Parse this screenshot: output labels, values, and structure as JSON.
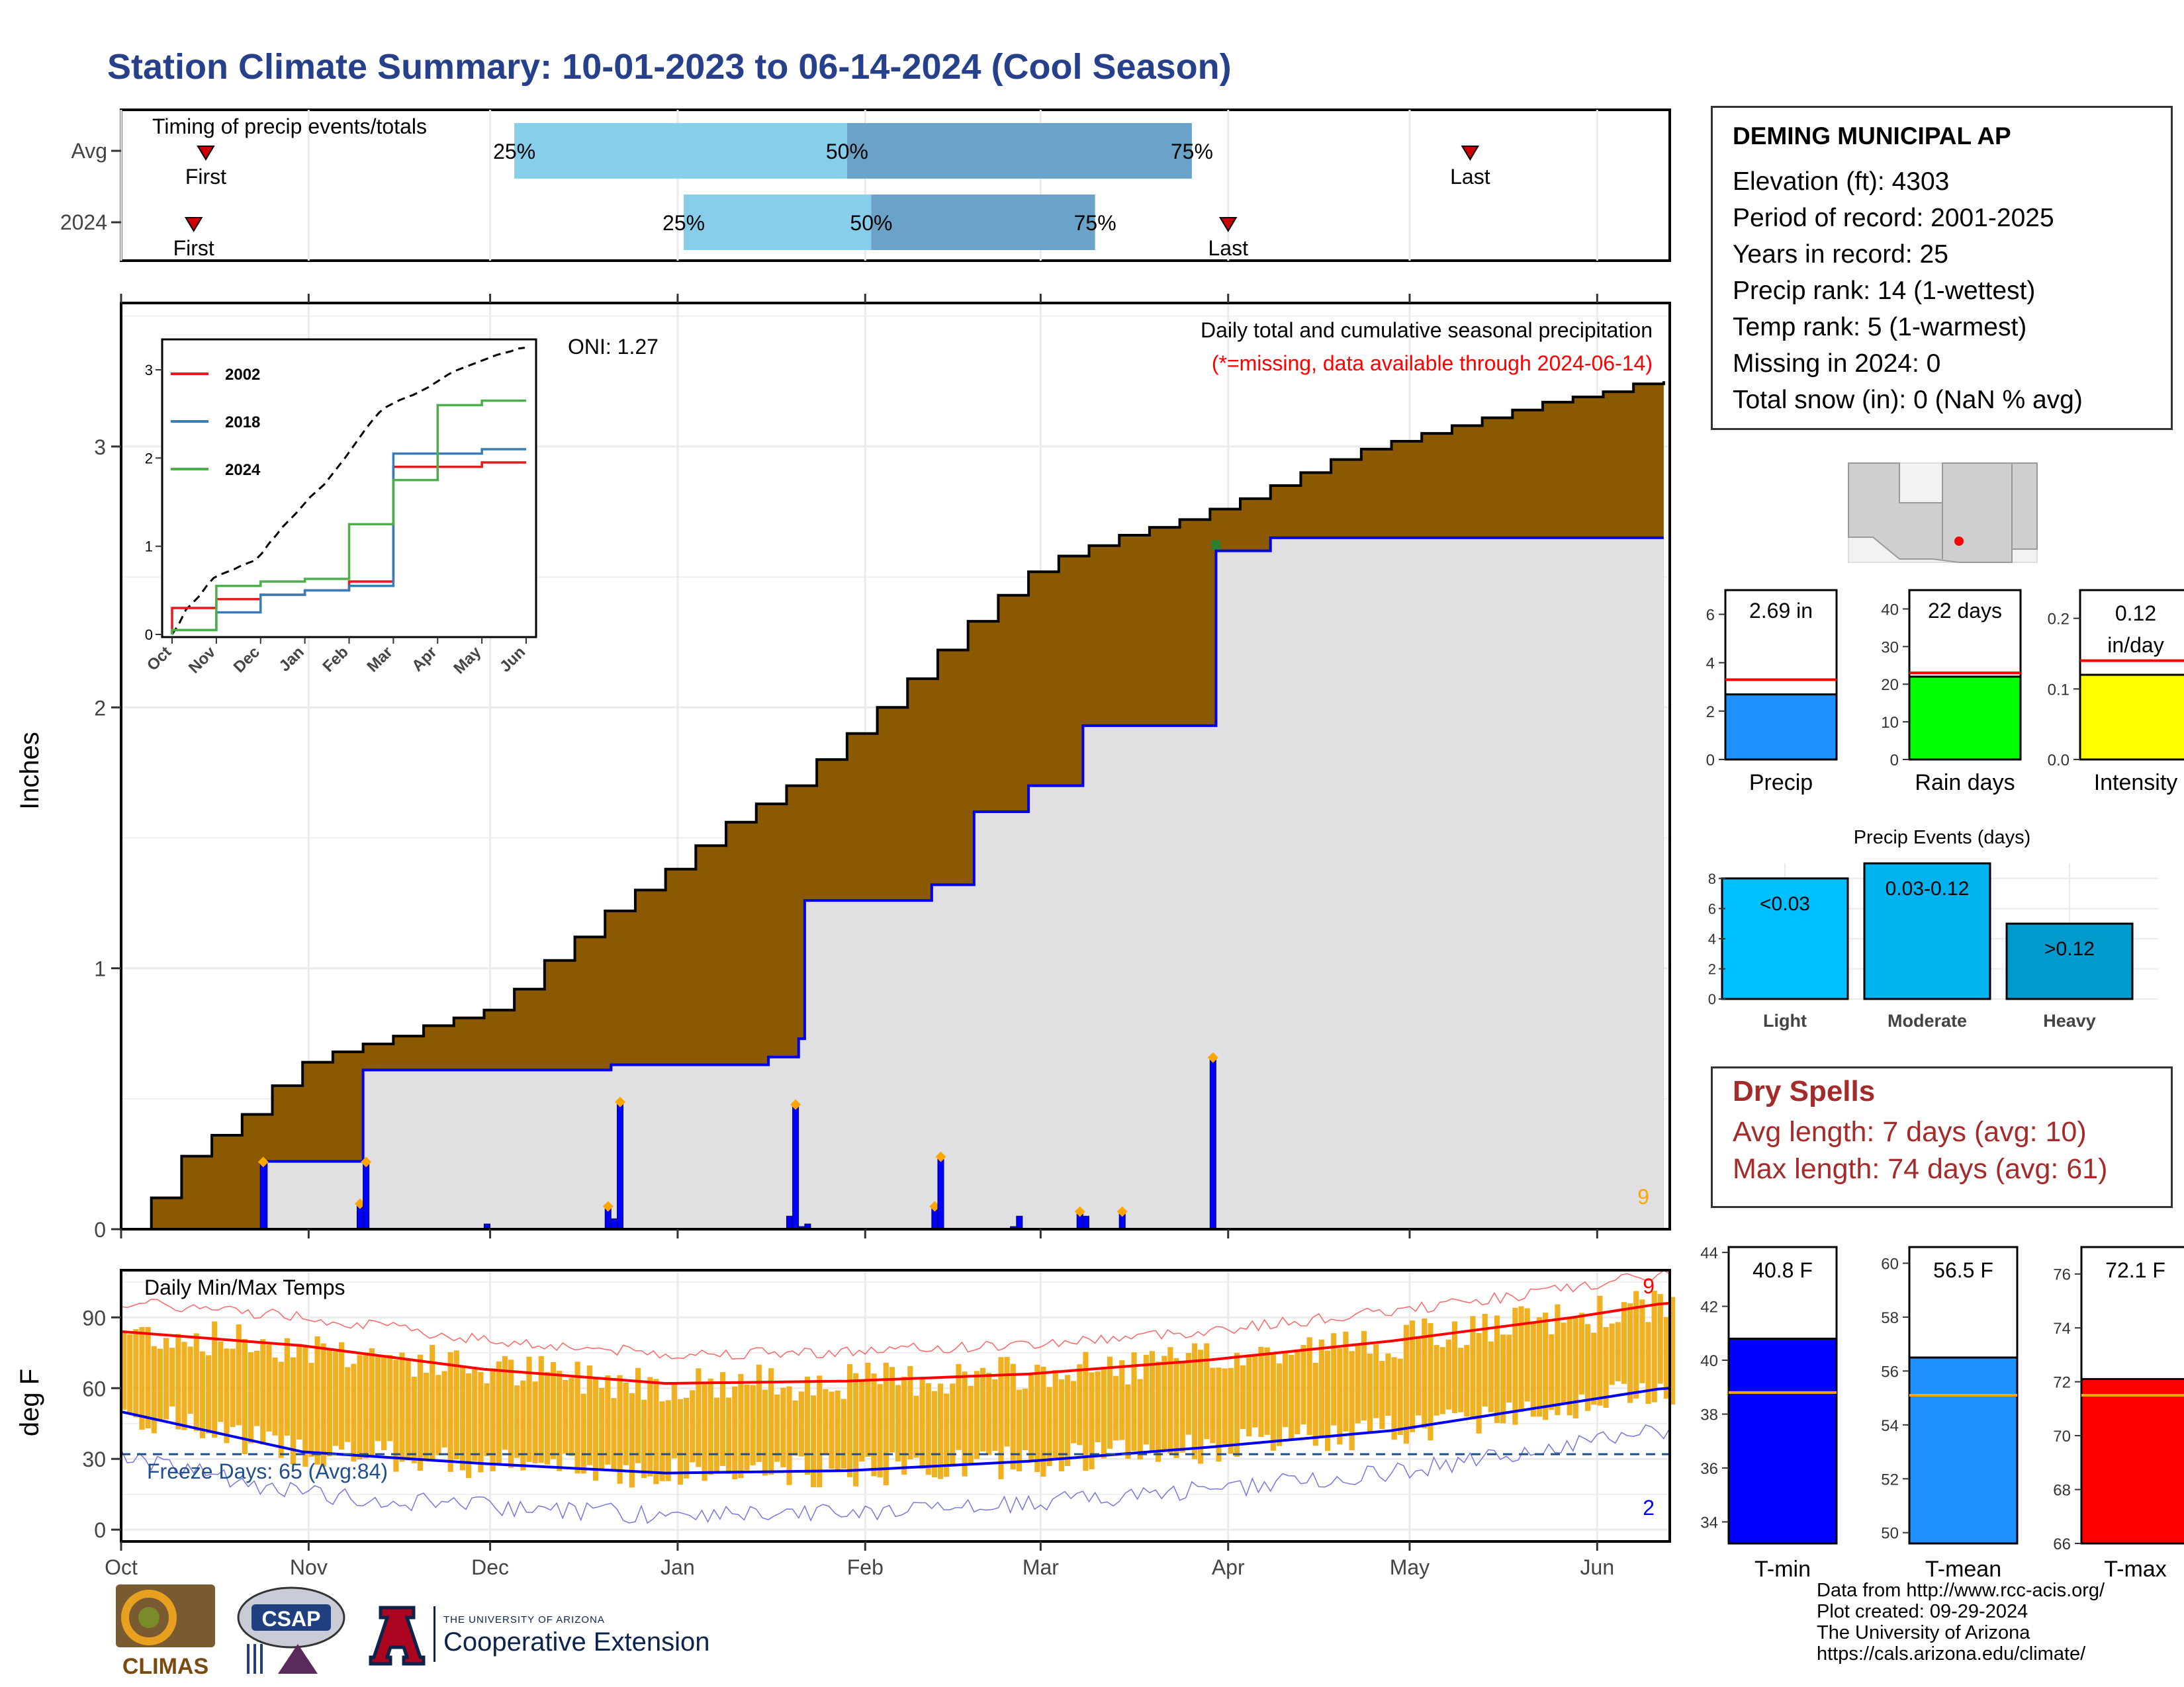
{
  "title": "Station Climate Summary: 10-01-2023 to 06-14-2024 (Cool Season)",
  "colors": {
    "title": "#27408b",
    "brown": "#8b5a00",
    "grey_area": "#e0e0e2",
    "blue_line": "#0000ee",
    "precip_bar": "#0000ff",
    "marker": "#ffa500",
    "red": "#ff0000",
    "temp_bar": "#f0b020",
    "light_blue": "#87ceeb",
    "mid_blue": "#6ba3c8"
  },
  "station": {
    "name": "DEMING MUNICIPAL AP",
    "lines": [
      "Elevation (ft): 4303",
      "Period of record: 2001-2025",
      "Years in record: 25",
      "Precip rank: 14 (1-wettest)",
      "Temp rank: 5 (1-warmest)",
      "Missing in 2024: 0",
      "Total snow (in): 0 (NaN % avg)"
    ]
  },
  "timing": {
    "heading": "Timing of precip events/totals",
    "rows": [
      {
        "label": "Avg",
        "first_label": "First",
        "last_label": "Last",
        "first_day": 14,
        "last_day": 223,
        "p25_day": 65,
        "p50_day": 120,
        "p75_day": 177
      },
      {
        "label": "2024",
        "first_label": "First",
        "last_label": "Last",
        "first_day": 12,
        "last_day": 183,
        "p25_day": 93,
        "p50_day": 124,
        "p75_day": 161
      }
    ],
    "pct_labels": [
      "25%",
      "50%",
      "75%"
    ]
  },
  "months": [
    "Oct",
    "Nov",
    "Dec",
    "Jan",
    "Feb",
    "Mar",
    "Apr",
    "May",
    "Jun"
  ],
  "main": {
    "ylabel": "Inches",
    "oni": "ONI: 1.27",
    "caption": "Daily total and cumulative seasonal precipitation",
    "caption2": "(*=missing, data available through 2024-06-14)",
    "count_label": "9",
    "yticks": [
      "0",
      "1",
      "2",
      "3"
    ]
  },
  "inset": {
    "yticks": [
      "0",
      "1",
      "2",
      "3"
    ],
    "xticks": [
      "Oct",
      "Nov",
      "Dec",
      "Jan",
      "Feb",
      "Mar",
      "Apr",
      "May",
      "Jun"
    ],
    "legend": [
      {
        "name": "2002",
        "color": "#e41a1c"
      },
      {
        "name": "2018",
        "color": "#377eb8"
      },
      {
        "name": "2024",
        "color": "#4daf4a"
      }
    ]
  },
  "temps": {
    "heading": "Daily Min/Max Temps",
    "ylabel": "deg F",
    "yticks": [
      "0",
      "30",
      "60",
      "90"
    ],
    "freeze": "Freeze Days: 65 (Avg:84)",
    "top_count": "9",
    "bottom_count": "2"
  },
  "bars_precip": [
    {
      "label": "Precip",
      "value_label": "2.69 in",
      "ticks": [
        "0",
        "2",
        "4",
        "6"
      ]
    },
    {
      "label": "Rain days",
      "value_label": "22 days",
      "ticks": [
        "0",
        "10",
        "20",
        "30",
        "40"
      ]
    },
    {
      "label": "Intensity",
      "value_label_1": "0.12",
      "value_label_2": "in/day",
      "ticks": [
        "0.0",
        "0.1",
        "0.2"
      ]
    }
  ],
  "events": {
    "heading": "Precip Events (days)",
    "ticks": [
      "0",
      "2",
      "4",
      "6",
      "8"
    ],
    "categories": [
      "Light",
      "Moderate",
      "Heavy"
    ],
    "labels": [
      "<0.03",
      "0.03-0.12",
      ">0.12"
    ]
  },
  "dry": {
    "heading": "Dry Spells",
    "line1": "Avg length: 7 days (avg: 10)",
    "line2": "Max length: 74 days (avg: 61)"
  },
  "temp_bars": [
    {
      "label": "T-min",
      "value_label": "40.8 F",
      "ticks": [
        "34",
        "36",
        "38",
        "40",
        "42",
        "44"
      ]
    },
    {
      "label": "T-mean",
      "value_label": "56.5 F",
      "ticks": [
        "50",
        "52",
        "54",
        "56",
        "58",
        "60"
      ]
    },
    {
      "label": "T-max",
      "value_label": "72.1 F",
      "ticks": [
        "66",
        "68",
        "70",
        "72",
        "74",
        "76"
      ]
    }
  ],
  "credits": [
    "Data from http://www.rcc-acis.org/",
    "Plot created: 09-29-2024",
    "The University of Arizona",
    "https://cals.arizona.edu/climate/"
  ],
  "logos": {
    "climas": "CLIMAS",
    "csap": "CSAP",
    "ua_small": "THE UNIVERSITY OF ARIZONA",
    "ua_big": "Cooperative Extension"
  },
  "chart_data": [
    {
      "type": "area",
      "title": "Daily total and cumulative seasonal precipitation",
      "ylabel": "Inches",
      "x_unit": "days since Oct 1",
      "ylim": [
        0,
        3.5
      ],
      "series": [
        {
          "name": "average cumulative",
          "x": [
            0,
            5,
            10,
            15,
            20,
            25,
            30,
            35,
            40,
            45,
            50,
            55,
            60,
            65,
            70,
            75,
            80,
            85,
            90,
            95,
            100,
            105,
            110,
            115,
            120,
            125,
            130,
            135,
            140,
            145,
            150,
            155,
            160,
            165,
            170,
            175,
            180,
            185,
            190,
            195,
            200,
            205,
            210,
            215,
            220,
            225,
            230,
            235,
            240,
            245,
            250,
            255
          ],
          "values": [
            0,
            0.12,
            0.28,
            0.36,
            0.44,
            0.55,
            0.64,
            0.68,
            0.71,
            0.74,
            0.78,
            0.81,
            0.84,
            0.92,
            1.03,
            1.12,
            1.22,
            1.3,
            1.38,
            1.47,
            1.56,
            1.63,
            1.7,
            1.8,
            1.9,
            2.0,
            2.11,
            2.22,
            2.33,
            2.43,
            2.52,
            2.58,
            2.62,
            2.66,
            2.69,
            2.72,
            2.76,
            2.8,
            2.85,
            2.9,
            2.95,
            2.99,
            3.02,
            3.05,
            3.08,
            3.11,
            3.14,
            3.17,
            3.19,
            3.21,
            3.24,
            3.25
          ]
        },
        {
          "name": "2024 cumulative",
          "x": [
            0,
            23,
            24,
            39,
            40,
            80,
            81,
            106,
            107,
            111,
            112,
            113,
            133,
            134,
            140,
            141,
            149,
            150,
            158,
            159,
            165,
            180,
            181,
            190,
            255
          ],
          "values": [
            0,
            0,
            0.26,
            0.26,
            0.61,
            0.61,
            0.63,
            0.63,
            0.66,
            0.66,
            0.73,
            1.26,
            1.26,
            1.32,
            1.32,
            1.6,
            1.6,
            1.7,
            1.7,
            1.93,
            1.93,
            1.93,
            2.6,
            2.65,
            2.65
          ]
        },
        {
          "name": "2024 daily",
          "x": [
            23,
            39,
            40,
            60,
            80,
            81,
            82,
            110,
            111,
            112,
            113,
            134,
            135,
            147,
            148,
            158,
            159,
            165,
            180
          ],
          "values": [
            0.25,
            0.09,
            0.25,
            0.02,
            0.08,
            0.04,
            0.48,
            0.05,
            0.47,
            0.01,
            0.02,
            0.08,
            0.27,
            0.01,
            0.05,
            0.06,
            0.05,
            0.06,
            0.65
          ]
        }
      ]
    },
    {
      "type": "line",
      "title": "",
      "x": [
        "Oct",
        "Nov",
        "Dec",
        "Jan",
        "Feb",
        "Mar",
        "Apr",
        "May",
        "Jun"
      ],
      "ylim": [
        0,
        3.3
      ],
      "series": [
        {
          "name": "2002",
          "values": [
            0.3,
            0.4,
            0.45,
            0.5,
            0.6,
            1.9,
            1.9,
            1.95,
            1.95
          ]
        },
        {
          "name": "2018",
          "values": [
            0.05,
            0.25,
            0.45,
            0.5,
            0.55,
            2.05,
            2.05,
            2.1,
            2.1
          ]
        },
        {
          "name": "2024",
          "values": [
            0.05,
            0.55,
            0.6,
            0.63,
            1.25,
            1.75,
            2.6,
            2.65,
            2.65
          ]
        }
      ]
    },
    {
      "type": "bar",
      "title": "Daily Min/Max Temps",
      "ylabel": "deg F",
      "ylim": [
        -5,
        110
      ],
      "series": [
        {
          "name": "avg max",
          "x": [
            0,
            30,
            60,
            90,
            120,
            150,
            180,
            210,
            240,
            255
          ],
          "values": [
            84,
            78,
            68,
            62,
            63,
            66,
            72,
            80,
            90,
            96
          ]
        },
        {
          "name": "avg min",
          "x": [
            0,
            30,
            60,
            90,
            120,
            150,
            180,
            210,
            240,
            255
          ],
          "values": [
            50,
            33,
            28,
            24,
            25,
            29,
            35,
            42,
            54,
            60
          ]
        }
      ]
    },
    {
      "type": "bar",
      "categories": [
        "Precip",
        "Rain days",
        "Intensity"
      ],
      "series": [
        {
          "name": "2024",
          "values": [
            2.69,
            22,
            0.12
          ]
        },
        {
          "name": "average",
          "values": [
            3.3,
            23,
            0.14
          ]
        }
      ]
    },
    {
      "type": "bar",
      "title": "Precip Events (days)",
      "categories": [
        "Light",
        "Moderate",
        "Heavy"
      ],
      "values": [
        8,
        9,
        5
      ],
      "ylim": [
        0,
        9
      ]
    },
    {
      "type": "bar",
      "categories": [
        "T-min",
        "T-mean",
        "T-max"
      ],
      "series": [
        {
          "name": "2024",
          "values": [
            40.8,
            56.5,
            72.1
          ]
        },
        {
          "name": "average",
          "values": [
            38.8,
            55.1,
            71.5
          ]
        }
      ]
    }
  ]
}
